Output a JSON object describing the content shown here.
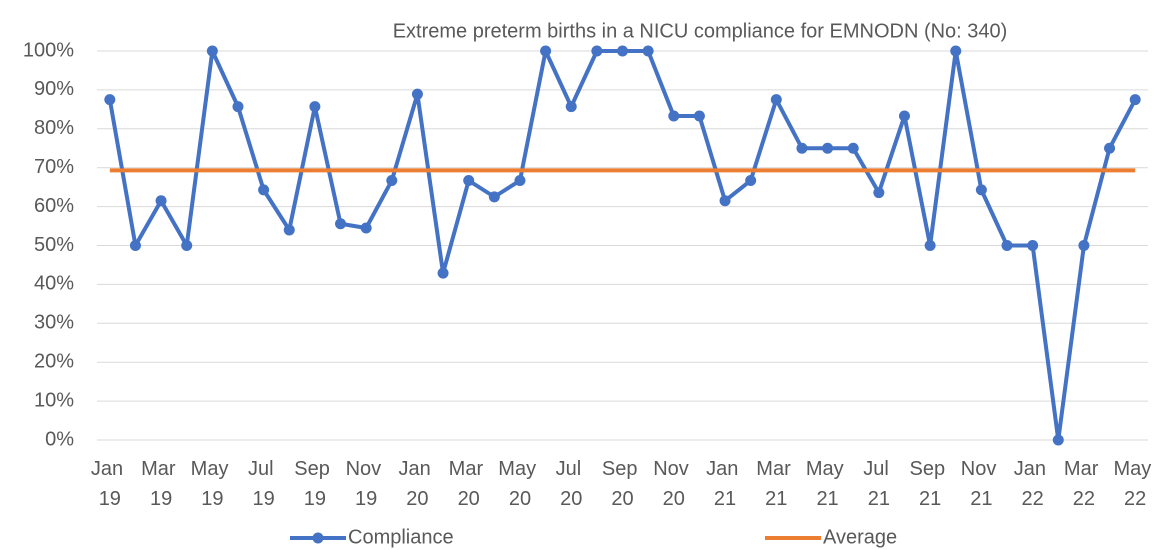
{
  "chart_data": {
    "type": "line",
    "title": "Extreme preterm births in a NICU compliance for EMNODN (No: 340)",
    "categories": [
      "Jan 19",
      null,
      "Mar 19",
      null,
      "May 19",
      null,
      "Jul 19",
      null,
      "Sep 19",
      null,
      "Nov 19",
      null,
      "Jan 20",
      null,
      "Mar 20",
      null,
      "May 20",
      null,
      "Jul 20",
      null,
      "Sep 20",
      null,
      "Nov 20",
      null,
      "Jan 21",
      null,
      "Mar 21",
      null,
      "May 21",
      null,
      "Jul 21",
      null,
      "Sep 21",
      null,
      "Nov 21",
      null,
      "Jan 22",
      null,
      "Mar 22",
      null,
      "May 22"
    ],
    "series": [
      {
        "name": "Compliance",
        "color": "#4472c4",
        "markers": true,
        "values": [
          87.5,
          50,
          61.5,
          50,
          100,
          85.7,
          64.3,
          54,
          85.7,
          55.6,
          54.5,
          66.7,
          88.9,
          42.9,
          66.7,
          62.5,
          66.7,
          100,
          85.7,
          100,
          100,
          100,
          83.3,
          83.3,
          61.5,
          66.7,
          87.5,
          75,
          75,
          75,
          63.6,
          83.3,
          50,
          100,
          64.3,
          50,
          50,
          0,
          50,
          75,
          87.5
        ]
      },
      {
        "name": "Average",
        "color": "#ed7d31",
        "markers": false,
        "values": [
          69.3,
          69.3,
          69.3,
          69.3,
          69.3,
          69.3,
          69.3,
          69.3,
          69.3,
          69.3,
          69.3,
          69.3,
          69.3,
          69.3,
          69.3,
          69.3,
          69.3,
          69.3,
          69.3,
          69.3,
          69.3,
          69.3,
          69.3,
          69.3,
          69.3,
          69.3,
          69.3,
          69.3,
          69.3,
          69.3,
          69.3,
          69.3,
          69.3,
          69.3,
          69.3,
          69.3,
          69.3,
          69.3,
          69.3,
          69.3,
          69.3
        ]
      }
    ],
    "ylim": [
      0,
      100
    ],
    "yticks": [
      {
        "value": 0,
        "label": "0%"
      },
      {
        "value": 10,
        "label": "10%"
      },
      {
        "value": 20,
        "label": "20%"
      },
      {
        "value": 30,
        "label": "30%"
      },
      {
        "value": 40,
        "label": "40%"
      },
      {
        "value": 50,
        "label": "50%"
      },
      {
        "value": 60,
        "label": "60%"
      },
      {
        "value": 70,
        "label": "70%"
      },
      {
        "value": 80,
        "label": "80%"
      },
      {
        "value": 90,
        "label": "90%"
      },
      {
        "value": 100,
        "label": "100%"
      }
    ],
    "grid": true,
    "legend": "bottom"
  }
}
